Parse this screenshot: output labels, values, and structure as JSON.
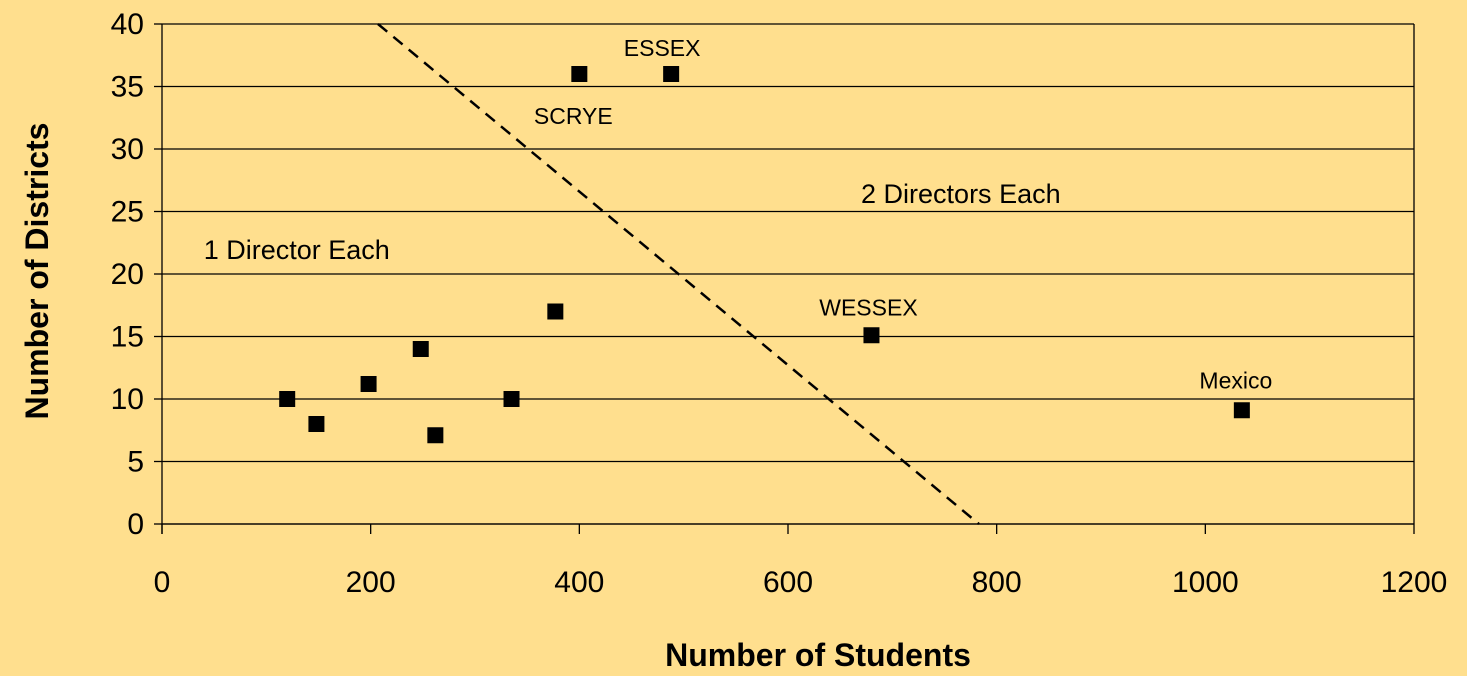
{
  "colors": {
    "background": "#FFDF8E",
    "grid": "#000000",
    "marker": "#000000",
    "divider_line": "#000000"
  },
  "chart_data": {
    "type": "scatter",
    "xlabel": "Number of Students",
    "ylabel": "Number of Districts",
    "xlim": [
      0,
      1200
    ],
    "ylim": [
      0,
      40
    ],
    "x_ticks": [
      0,
      200,
      400,
      600,
      800,
      1000,
      1200
    ],
    "x_tick_labels": [
      "0",
      "200",
      "400",
      "600",
      "800",
      "1000",
      "1200"
    ],
    "y_ticks": [
      0,
      5,
      10,
      15,
      20,
      25,
      30,
      35,
      40
    ],
    "y_tick_labels": [
      "0",
      "5",
      "10",
      "15",
      "20",
      "25",
      "30",
      "35",
      "40"
    ],
    "grid": "horizontal",
    "marker": "square",
    "points": [
      {
        "x": 120,
        "y": 10,
        "label": ""
      },
      {
        "x": 148,
        "y": 8,
        "label": ""
      },
      {
        "x": 198,
        "y": 11.2,
        "label": ""
      },
      {
        "x": 248,
        "y": 14,
        "label": ""
      },
      {
        "x": 262,
        "y": 7.1,
        "label": ""
      },
      {
        "x": 335,
        "y": 10,
        "label": ""
      },
      {
        "x": 377,
        "y": 17,
        "label": ""
      },
      {
        "x": 400,
        "y": 36,
        "label": "SCRYE"
      },
      {
        "x": 488,
        "y": 36,
        "label": "ESSEX"
      },
      {
        "x": 680,
        "y": 15.1,
        "label": "WESSEX"
      },
      {
        "x": 1035,
        "y": 9.1,
        "label": "Mexico"
      }
    ],
    "divider_line": {
      "style": "dashed",
      "from": {
        "x": 207,
        "y": 40
      },
      "to": {
        "x": 783,
        "y": 0
      }
    },
    "annotations": [
      {
        "text": "1 Director Each",
        "x": 40,
        "y": 22
      },
      {
        "text": "2 Directors Each",
        "x": 670,
        "y": 26.5
      }
    ]
  }
}
